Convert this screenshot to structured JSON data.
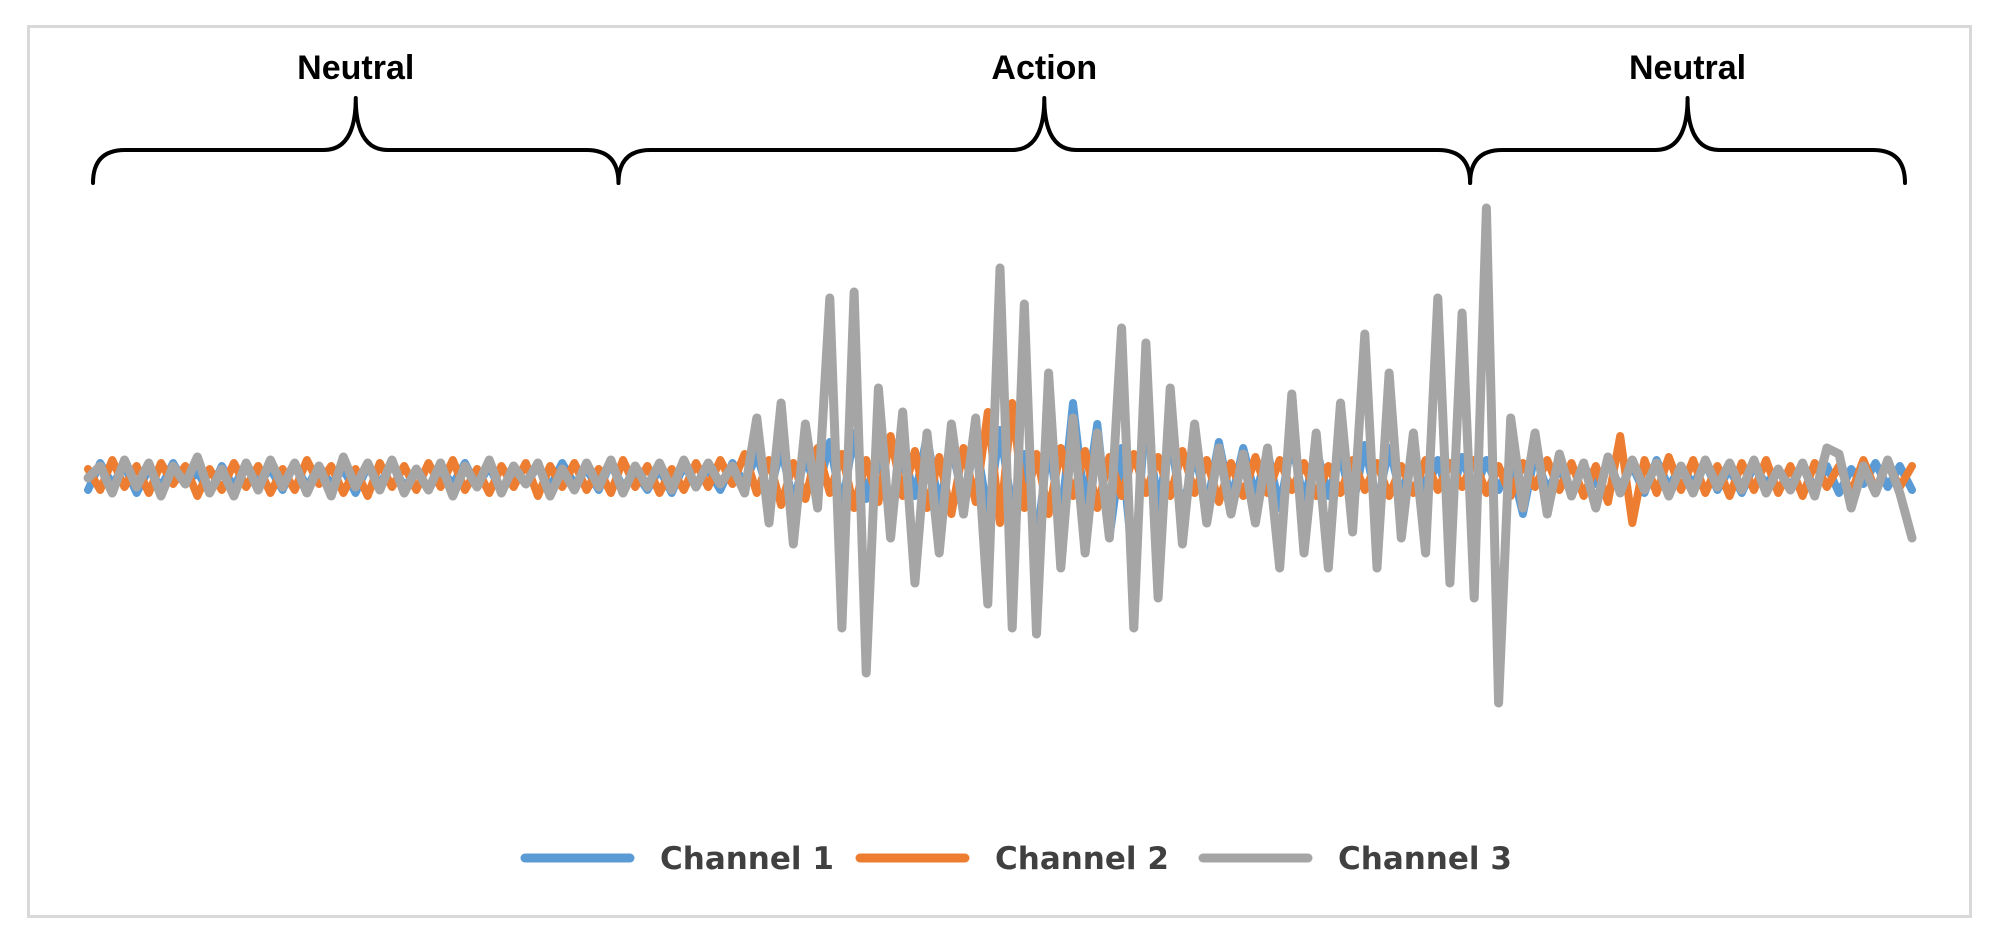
{
  "chart_data": {
    "type": "line",
    "title": "",
    "xlabel": "",
    "ylabel": "",
    "x": {
      "min": 0,
      "max": 100
    },
    "ylim": [
      -1,
      1
    ],
    "grid": false,
    "legend_position": "bottom",
    "annotations": [
      {
        "label": "Neutral",
        "x_start": 0,
        "x_end": 29
      },
      {
        "label": "Action",
        "x_start": 29,
        "x_end": 76
      },
      {
        "label": "Neutral",
        "x_start": 76,
        "x_end": 100
      }
    ],
    "series": [
      {
        "name": "Channel 1",
        "color": "#5b9bd5",
        "values": [
          -0.04,
          0.05,
          -0.02,
          0.04,
          -0.05,
          0.03,
          -0.03,
          0.05,
          -0.02,
          0.02,
          -0.05,
          0.04,
          -0.03,
          0.05,
          -0.02,
          0.03,
          -0.04,
          0.05,
          -0.03,
          0.04,
          -0.02,
          0.03,
          -0.05,
          0.04,
          -0.02,
          0.05,
          -0.03,
          0.02,
          -0.04,
          0.03,
          -0.02,
          0.05,
          -0.03,
          0.04,
          -0.05,
          0.03,
          -0.02,
          0.04,
          -0.03,
          0.05,
          -0.02,
          0.03,
          -0.04,
          0.05,
          -0.03,
          0.02,
          -0.04,
          0.03,
          -0.05,
          0.04,
          -0.02,
          0.03,
          -0.04,
          0.05,
          -0.02,
          0.08,
          -0.06,
          0.1,
          -0.08,
          0.07,
          -0.05,
          0.12,
          -0.1,
          0.15,
          -0.07,
          0.1,
          -0.12,
          0.09,
          -0.06,
          0.14,
          -0.1,
          0.11,
          -0.08,
          0.13,
          -0.12,
          0.16,
          -0.1,
          0.08,
          -0.22,
          0.12,
          -0.15,
          0.25,
          -0.1,
          0.18,
          -0.2,
          0.1,
          -0.32,
          0.22,
          -0.1,
          0.14,
          -0.12,
          0.09,
          -0.1,
          0.12,
          -0.08,
          0.1,
          -0.06,
          0.09,
          -0.1,
          0.12,
          -0.08,
          0.1,
          -0.06,
          0.08,
          -0.1,
          0.11,
          -0.09,
          0.1,
          -0.06,
          0.08,
          -0.05,
          0.06,
          -0.08,
          0.07,
          -0.05,
          0.06,
          -0.04,
          0.05,
          -0.12,
          0.08,
          -0.04,
          0.03,
          -0.05,
          0.04,
          -0.02,
          0.05,
          -0.03,
          0.04,
          -0.05,
          0.06,
          -0.03,
          0.04,
          -0.02,
          0.05,
          -0.04,
          0.03,
          -0.05,
          0.04,
          -0.02,
          0.03,
          -0.03,
          0.05,
          -0.04,
          0.04,
          -0.05,
          0.03,
          -0.02,
          0.05,
          -0.03,
          0.04,
          -0.04
        ]
      },
      {
        "name": "Channel 2",
        "color": "#ed7d31",
        "values": [
          0.03,
          -0.04,
          0.06,
          -0.03,
          0.04,
          -0.05,
          0.05,
          -0.02,
          0.04,
          -0.06,
          0.03,
          -0.04,
          0.05,
          -0.03,
          0.04,
          -0.05,
          0.03,
          -0.04,
          0.06,
          -0.02,
          0.04,
          -0.05,
          0.03,
          -0.06,
          0.05,
          -0.03,
          0.04,
          -0.04,
          0.05,
          -0.03,
          0.06,
          -0.04,
          0.03,
          -0.05,
          0.04,
          -0.03,
          0.05,
          -0.06,
          0.04,
          -0.03,
          0.05,
          -0.04,
          0.03,
          -0.05,
          0.06,
          -0.03,
          0.04,
          -0.05,
          0.03,
          -0.04,
          0.05,
          -0.03,
          0.06,
          -0.02,
          0.08,
          -0.05,
          0.06,
          -0.09,
          0.05,
          -0.07,
          0.1,
          -0.05,
          0.08,
          -0.1,
          0.06,
          -0.08,
          0.14,
          -0.06,
          0.09,
          -0.1,
          0.07,
          -0.12,
          0.1,
          -0.08,
          0.22,
          -0.15,
          0.25,
          -0.1,
          0.08,
          -0.12,
          0.1,
          -0.06,
          0.09,
          -0.1,
          0.07,
          -0.06,
          0.08,
          -0.05,
          0.07,
          -0.06,
          0.09,
          -0.05,
          0.06,
          -0.08,
          0.05,
          -0.06,
          0.07,
          -0.05,
          0.06,
          -0.04,
          0.05,
          -0.06,
          0.04,
          -0.05,
          0.06,
          -0.04,
          0.05,
          -0.06,
          0.04,
          -0.05,
          0.06,
          -0.04,
          0.05,
          -0.03,
          0.06,
          -0.05,
          0.04,
          -0.06,
          0.05,
          -0.03,
          0.06,
          -0.04,
          0.05,
          -0.06,
          0.04,
          -0.08,
          0.14,
          -0.15,
          0.06,
          -0.05,
          0.07,
          -0.04,
          0.06,
          -0.05,
          0.04,
          -0.06,
          0.05,
          -0.04,
          0.06,
          -0.05,
          0.04,
          -0.06,
          0.05,
          -0.03,
          0.04,
          -0.05,
          0.06,
          -0.04,
          0.05,
          -0.03,
          0.04
        ]
      },
      {
        "name": "Channel 3",
        "color": "#a5a5a5",
        "values": [
          0.0,
          0.04,
          -0.05,
          0.06,
          -0.03,
          0.05,
          -0.06,
          0.04,
          -0.02,
          0.07,
          -0.05,
          0.03,
          -0.06,
          0.05,
          -0.04,
          0.06,
          -0.03,
          0.05,
          -0.05,
          0.04,
          -0.06,
          0.07,
          -0.03,
          0.05,
          -0.04,
          0.06,
          -0.05,
          0.03,
          -0.04,
          0.05,
          -0.06,
          0.04,
          -0.03,
          0.06,
          -0.05,
          0.04,
          -0.02,
          0.05,
          -0.06,
          0.03,
          -0.04,
          0.05,
          -0.03,
          0.06,
          -0.05,
          0.04,
          -0.03,
          0.05,
          -0.04,
          0.06,
          -0.03,
          0.05,
          -0.02,
          0.04,
          -0.05,
          0.2,
          -0.15,
          0.25,
          -0.22,
          0.18,
          -0.1,
          0.6,
          -0.5,
          0.62,
          -0.65,
          0.3,
          -0.2,
          0.22,
          -0.35,
          0.15,
          -0.25,
          0.18,
          -0.12,
          0.2,
          -0.42,
          0.7,
          -0.5,
          0.58,
          -0.52,
          0.35,
          -0.3,
          0.2,
          -0.25,
          0.15,
          -0.2,
          0.5,
          -0.5,
          0.45,
          -0.4,
          0.3,
          -0.22,
          0.18,
          -0.15,
          0.1,
          -0.12,
          0.08,
          -0.15,
          0.1,
          -0.3,
          0.28,
          -0.25,
          0.15,
          -0.3,
          0.25,
          -0.18,
          0.48,
          -0.3,
          0.35,
          -0.2,
          0.15,
          -0.25,
          0.6,
          -0.35,
          0.55,
          -0.4,
          0.9,
          -0.75,
          0.2,
          -0.1,
          0.15,
          -0.12,
          0.08,
          -0.06,
          0.05,
          -0.1,
          0.07,
          -0.05,
          0.06,
          -0.04,
          0.05,
          -0.06,
          0.04,
          -0.05,
          0.06,
          -0.03,
          0.05,
          -0.04,
          0.06,
          -0.05,
          0.03,
          -0.04,
          0.05,
          -0.06,
          0.1,
          0.08,
          -0.1,
          0.04,
          -0.05,
          0.06,
          -0.05,
          -0.2
        ]
      }
    ]
  }
}
